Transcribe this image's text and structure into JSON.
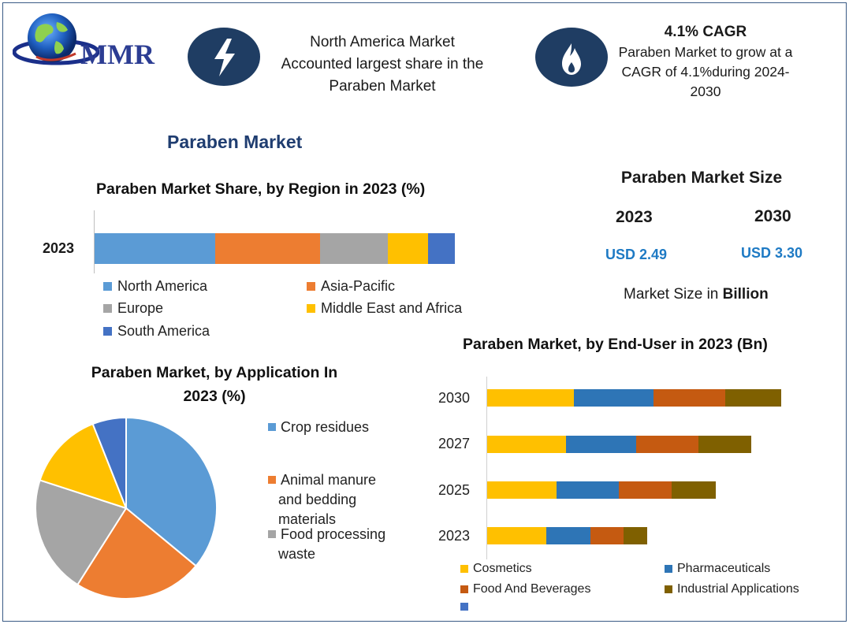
{
  "logo": {
    "text": "MMR"
  },
  "highlights": [
    {
      "icon": "lightning-bolt-icon",
      "text_lines": [
        "North America Market",
        "Accounted largest share in the",
        "Paraben Market"
      ]
    },
    {
      "icon": "flame-icon",
      "title": "4.1% CAGR",
      "text_lines": [
        "Paraben Market to grow at a",
        "CAGR of 4.1%during 2024-",
        "2030"
      ]
    }
  ],
  "main_title": "Paraben Market",
  "market_size": {
    "title": "Paraben Market Size",
    "years": [
      "2023",
      "2030"
    ],
    "values": [
      "USD 2.49",
      "USD 3.30"
    ],
    "unit_prefix": "Market Size in ",
    "unit_bold": "Billion"
  },
  "colors": {
    "blue": "#5b9bd5",
    "orange": "#ed7d31",
    "gray": "#a5a5a5",
    "yellow": "#ffc000",
    "darkblue": "#4472c4",
    "navy": "#1f3d63",
    "steel": "#2e75b6",
    "rust": "#c55a11",
    "olive": "#7f6000"
  },
  "chart_data": [
    {
      "type": "bar",
      "orientation": "horizontal-stacked-100",
      "title": "Paraben Market Share, by Region in 2023 (%)",
      "categories": [
        "2023"
      ],
      "series": [
        {
          "name": "North America",
          "values": [
            33.5
          ],
          "color": "#5b9bd5"
        },
        {
          "name": "Asia-Pacific",
          "values": [
            29
          ],
          "color": "#ed7d31"
        },
        {
          "name": "Europe",
          "values": [
            19
          ],
          "color": "#a5a5a5"
        },
        {
          "name": "Middle East and Africa",
          "values": [
            11
          ],
          "color": "#ffc000"
        },
        {
          "name": "South America",
          "values": [
            7.5
          ],
          "color": "#4472c4"
        }
      ],
      "legend_position": "bottom"
    },
    {
      "type": "pie",
      "title_lines": [
        "Paraben Market, by Application In",
        "2023 (%)"
      ],
      "slices": [
        {
          "name": "Crop residues",
          "value": 36,
          "color": "#5b9bd5"
        },
        {
          "name": "Animal manure and bedding materials",
          "value": 23,
          "color": "#ed7d31"
        },
        {
          "name": "Food processing waste",
          "value": 21,
          "color": "#a5a5a5"
        },
        {
          "name": "",
          "value": 14,
          "color": "#ffc000"
        },
        {
          "name": "",
          "value": 6,
          "color": "#4472c4"
        }
      ],
      "legend_lines": [
        {
          "color": "#5b9bd5",
          "lines": [
            "Crop residues"
          ]
        },
        {
          "color": "#ed7d31",
          "lines": [
            "Animal manure",
            "and bedding",
            "materials"
          ]
        },
        {
          "color": "#a5a5a5",
          "lines": [
            "Food processing",
            "waste"
          ]
        }
      ],
      "legend_position": "right"
    },
    {
      "type": "bar",
      "orientation": "horizontal-stacked",
      "title": "Paraben Market, by End-User in 2023 (Bn)",
      "categories": [
        "2030",
        "2027",
        "2025",
        "2023"
      ],
      "series": [
        {
          "name": "Cosmetics",
          "values": [
            1.12,
            1.02,
            0.9,
            0.77
          ],
          "color": "#ffc000"
        },
        {
          "name": "Pharmaceuticals",
          "values": [
            1.03,
            0.91,
            0.8,
            0.57
          ],
          "color": "#2e75b6"
        },
        {
          "name": "Food And Beverages",
          "values": [
            0.93,
            0.8,
            0.69,
            0.43
          ],
          "color": "#c55a11"
        },
        {
          "name": "Industrial Applications",
          "values": [
            0.73,
            0.69,
            0.57,
            0.3
          ],
          "color": "#7f6000"
        },
        {
          "name": "",
          "values": [
            0,
            0,
            0,
            0
          ],
          "color": "#4472c4"
        }
      ],
      "legend_position": "bottom"
    }
  ]
}
